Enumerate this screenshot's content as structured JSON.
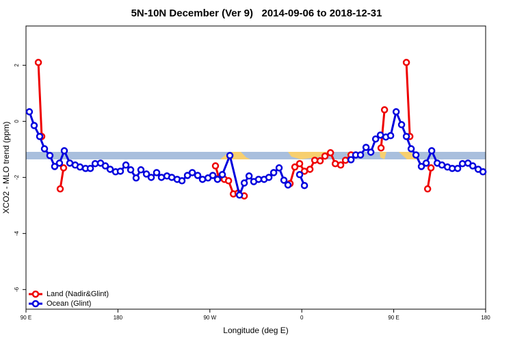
{
  "chart_data": {
    "type": "line",
    "title": "5N-10N December (Ver 9)   2014-09-06 to 2018-12-31",
    "x_label": "Longitude (deg E)",
    "y_label": "XCO2 - MLO trend (ppm)",
    "xlim": [
      90,
      540
    ],
    "ylim": [
      -6.7,
      3.4
    ],
    "xticks": [
      {
        "value": 90,
        "label": "90 E"
      },
      {
        "value": 180,
        "label": "180"
      },
      {
        "value": 270,
        "label": "90 W"
      },
      {
        "value": 360,
        "label": "0"
      },
      {
        "value": 450,
        "label": "90 E"
      },
      {
        "value": 540,
        "label": "180"
      }
    ],
    "yticks": [
      2,
      0,
      -2,
      -4,
      -6
    ],
    "legend": "bottomleft",
    "series": [
      {
        "name": "Land (Nadir&Glint)",
        "color": "#ee0000",
        "x": [
          102.1,
          105.4,
          null,
          123.5,
          126.8,
          null,
          275.5,
          278.9,
          284.2,
          288.3,
          293.0,
          297.6,
          303.7,
          null,
          348.5,
          353.2,
          357.9,
          362.6,
          368.0,
          372.7,
          378.0,
          382.7,
          388.1,
          392.8,
          398.1,
          402.8,
          408.2,
          null,
          437.6,
          441.0,
          null,
          462.4,
          465.8,
          null,
          483.2,
          486.5
        ],
        "values": [
          2.1,
          -0.54,
          null,
          -2.41,
          -1.66,
          null,
          -1.59,
          -2.02,
          -2.07,
          -2.12,
          -2.59,
          -2.56,
          -2.66,
          null,
          -2.22,
          -1.63,
          -1.51,
          -1.78,
          -1.71,
          -1.39,
          -1.41,
          -1.24,
          -1.12,
          -1.51,
          -1.56,
          -1.39,
          -1.2,
          null,
          -0.95,
          0.41,
          null,
          2.1,
          -0.54,
          null,
          -2.41,
          -1.66
        ]
      },
      {
        "name": "Ocean (Glint)",
        "color": "#0000dd",
        "x": [
          93.3,
          98.0,
          103.4,
          108.1,
          113.4,
          118.1,
          122.8,
          127.5,
          132.9,
          138.2,
          142.9,
          148.3,
          153.0,
          157.7,
          163.0,
          167.7,
          172.4,
          177.7,
          182.4,
          187.8,
          192.5,
          197.8,
          202.5,
          207.9,
          212.6,
          217.9,
          222.6,
          228.0,
          232.7,
          238.0,
          242.7,
          248.1,
          252.8,
          258.1,
          262.8,
          268.2,
          272.9,
          277.5,
          282.2,
          289.6,
          299.0,
          303.7,
          308.4,
          313.0,
          317.7,
          323.1,
          327.8,
          332.5,
          337.8,
          342.5,
          346.5,
          null,
          357.9,
          362.6,
          null,
          408.2,
          412.8,
          417.5,
          422.9,
          427.6,
          432.3,
          437.0,
          442.3,
          447.0,
          452.4,
          457.7,
          462.4,
          467.1,
          471.8,
          477.1,
          481.8,
          487.2,
          492.6,
          497.2,
          502.6,
          507.3,
          512.6,
          517.3,
          522.7,
          527.4,
          532.7,
          537.4
        ],
        "values": [
          0.34,
          -0.15,
          -0.54,
          -0.98,
          -1.22,
          -1.61,
          -1.49,
          -1.05,
          -1.49,
          -1.56,
          -1.63,
          -1.68,
          -1.68,
          -1.51,
          -1.49,
          -1.59,
          -1.71,
          -1.8,
          -1.78,
          -1.56,
          -1.73,
          -2.02,
          -1.73,
          -1.88,
          -2.0,
          -1.83,
          -2.0,
          -1.95,
          -2.0,
          -2.07,
          -2.12,
          -1.93,
          -1.83,
          -1.93,
          -2.07,
          -2.02,
          -1.93,
          -2.07,
          -1.9,
          -1.22,
          -2.63,
          -2.2,
          -1.95,
          -2.15,
          -2.07,
          -2.07,
          -2.0,
          -1.83,
          -1.66,
          -2.1,
          -2.27,
          null,
          -1.9,
          -2.29,
          null,
          -1.37,
          -1.2,
          -1.2,
          -0.93,
          -1.1,
          -0.63,
          -0.49,
          -0.56,
          -0.51,
          0.34,
          -0.12,
          -0.54,
          -0.98,
          -1.2,
          -1.61,
          -1.49,
          -1.05,
          -1.49,
          -1.56,
          -1.63,
          -1.68,
          -1.68,
          -1.51,
          -1.49,
          -1.59,
          -1.71,
          -1.8
        ]
      }
    ]
  }
}
